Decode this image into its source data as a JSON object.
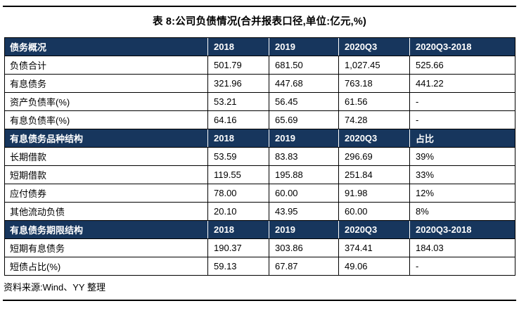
{
  "title": "表 8:公司负债情况(合并报表口径,单位:亿元,%)",
  "source_note": "资料来源:Wind、YY 整理",
  "colors": {
    "section_header_bg": "#17365D",
    "section_header_text": "#FFFFFF",
    "body_border": "#000000",
    "page_bg": "#FFFFFF"
  },
  "chart_data": {
    "type": "table",
    "title": "表 8:公司负债情况(合并报表口径,单位:亿元,%)",
    "sections": [
      {
        "header": [
          "债务概况",
          "2018",
          "2019",
          "2020Q3",
          "2020Q3-2018"
        ],
        "rows": [
          [
            "负债合计",
            "501.79",
            "681.50",
            "1,027.45",
            "525.66"
          ],
          [
            "有息债务",
            "321.96",
            "447.68",
            "763.18",
            "441.22"
          ],
          [
            "资产负债率(%)",
            "53.21",
            "56.45",
            "61.56",
            "-"
          ],
          [
            "有息负债率(%)",
            "64.16",
            "65.69",
            "74.28",
            "-"
          ]
        ]
      },
      {
        "header": [
          "有息债务品种结构",
          "2018",
          "2019",
          "2020Q3",
          "占比"
        ],
        "rows": [
          [
            "长期借款",
            "53.59",
            "83.83",
            "296.69",
            "39%"
          ],
          [
            "短期借款",
            "119.55",
            "195.88",
            "251.84",
            "33%"
          ],
          [
            "应付债券",
            "78.00",
            "60.00",
            "91.98",
            "12%"
          ],
          [
            "其他流动负债",
            "20.10",
            "43.95",
            "60.00",
            "8%"
          ]
        ]
      },
      {
        "header": [
          "有息债务期限结构",
          "2018",
          "2019",
          "2020Q3",
          "2020Q3-2018"
        ],
        "rows": [
          [
            "短期有息债务",
            "190.37",
            "303.86",
            "374.41",
            "184.03"
          ],
          [
            "短债占比(%)",
            "59.13",
            "67.87",
            "49.06",
            "-"
          ]
        ]
      }
    ]
  }
}
